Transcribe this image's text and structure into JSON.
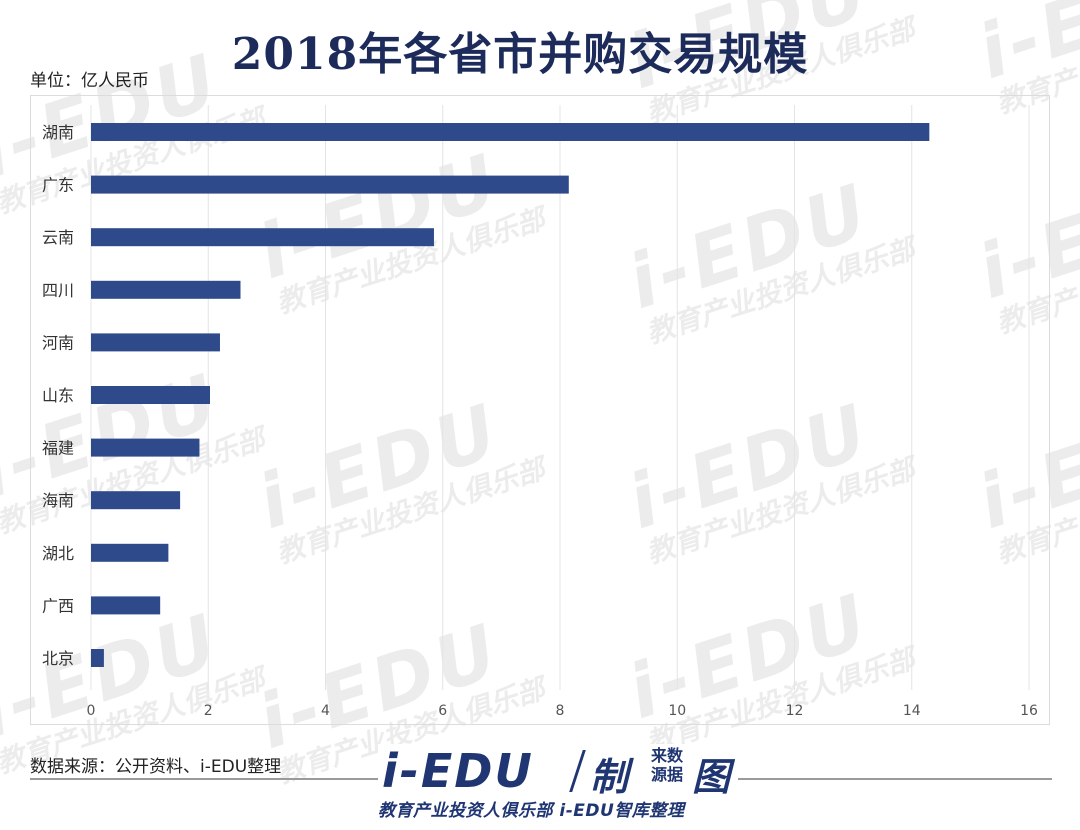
{
  "header": {
    "title": "2018年各省市并购交易规模",
    "unit": "单位：亿人民币"
  },
  "footer": {
    "source": "数据来源：公开资料、i-EDU整理"
  },
  "logo": {
    "main": "i-EDU",
    "zhi": "制",
    "small_top": "来数",
    "small_bottom": "源据",
    "tu": "图",
    "subtitle": "教育产业投资人俱乐部  i-EDU智库整理",
    "brand_color": "#1f3673"
  },
  "watermark": {
    "big": "i-EDU",
    "small": "教育产业投资人俱乐部"
  },
  "colors": {
    "bar": "#2e4a8a",
    "grid": "#e4e4e4",
    "title": "#1c2b5a",
    "tick": "#555555"
  },
  "chart_data": {
    "type": "bar",
    "orientation": "horizontal",
    "title": "2018年各省市并购交易规模",
    "xlabel": "",
    "ylabel": "",
    "unit": "亿人民币",
    "xlim": [
      0,
      16
    ],
    "xticks": [
      0,
      2,
      4,
      6,
      8,
      10,
      12,
      14,
      16
    ],
    "grid": true,
    "legend": "none",
    "categories": [
      "湖南",
      "广东",
      "云南",
      "四川",
      "河南",
      "山东",
      "福建",
      "海南",
      "湖北",
      "广西",
      "北京"
    ],
    "values": [
      14.3,
      8.15,
      5.85,
      2.55,
      2.2,
      2.03,
      1.85,
      1.52,
      1.32,
      1.18,
      0.22
    ]
  }
}
